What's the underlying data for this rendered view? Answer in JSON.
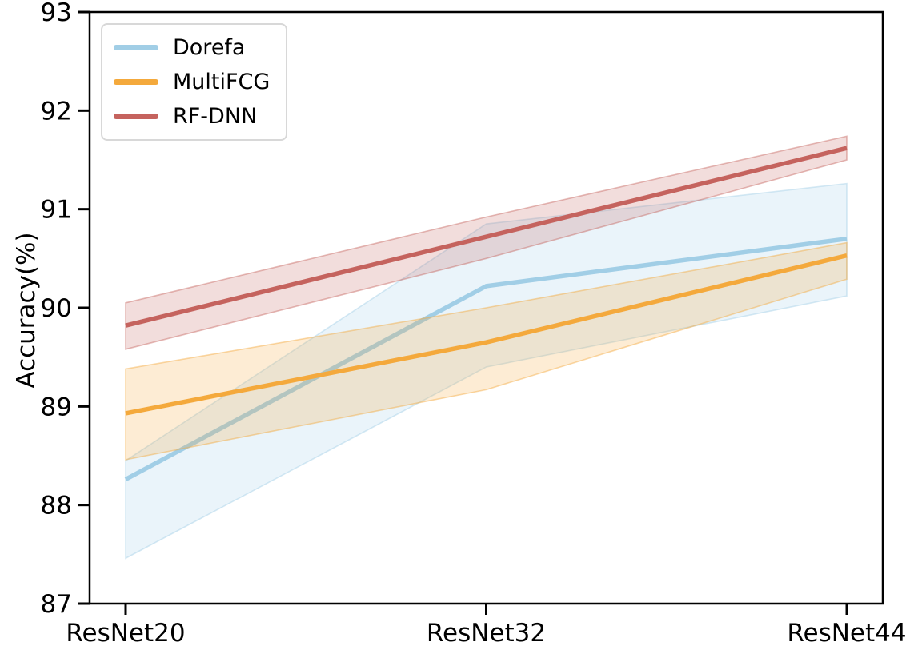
{
  "chart_data": {
    "type": "line",
    "title": "",
    "xlabel": "",
    "ylabel": "Accuracy(%)",
    "ylim": [
      87,
      93
    ],
    "yticks": [
      87,
      88,
      89,
      90,
      91,
      92,
      93
    ],
    "categories": [
      "ResNet20",
      "ResNet32",
      "ResNet44"
    ],
    "grid": false,
    "legend_position": "upper-left",
    "band_style": "shaded confidence band around each mean line",
    "series": [
      {
        "name": "Dorefa",
        "color": "#a1cee6",
        "values": [
          88.26,
          90.22,
          90.7
        ],
        "band_lower": [
          87.46,
          89.4,
          90.12
        ],
        "band_upper": [
          88.45,
          90.85,
          91.26
        ]
      },
      {
        "name": "MultiFCG",
        "color": "#f4a93c",
        "values": [
          88.93,
          89.65,
          90.53
        ],
        "band_lower": [
          88.46,
          89.17,
          90.29
        ],
        "band_upper": [
          89.38,
          90.0,
          90.66
        ]
      },
      {
        "name": "RF-DNN",
        "color": "#c5635e",
        "values": [
          89.82,
          90.72,
          91.62
        ],
        "band_lower": [
          89.58,
          90.5,
          91.5
        ],
        "band_upper": [
          90.05,
          90.92,
          91.74
        ]
      }
    ]
  },
  "style_colors": {
    "axis": "#000000",
    "tick_text": "#000000",
    "legend_border": "#d8d8d8"
  }
}
